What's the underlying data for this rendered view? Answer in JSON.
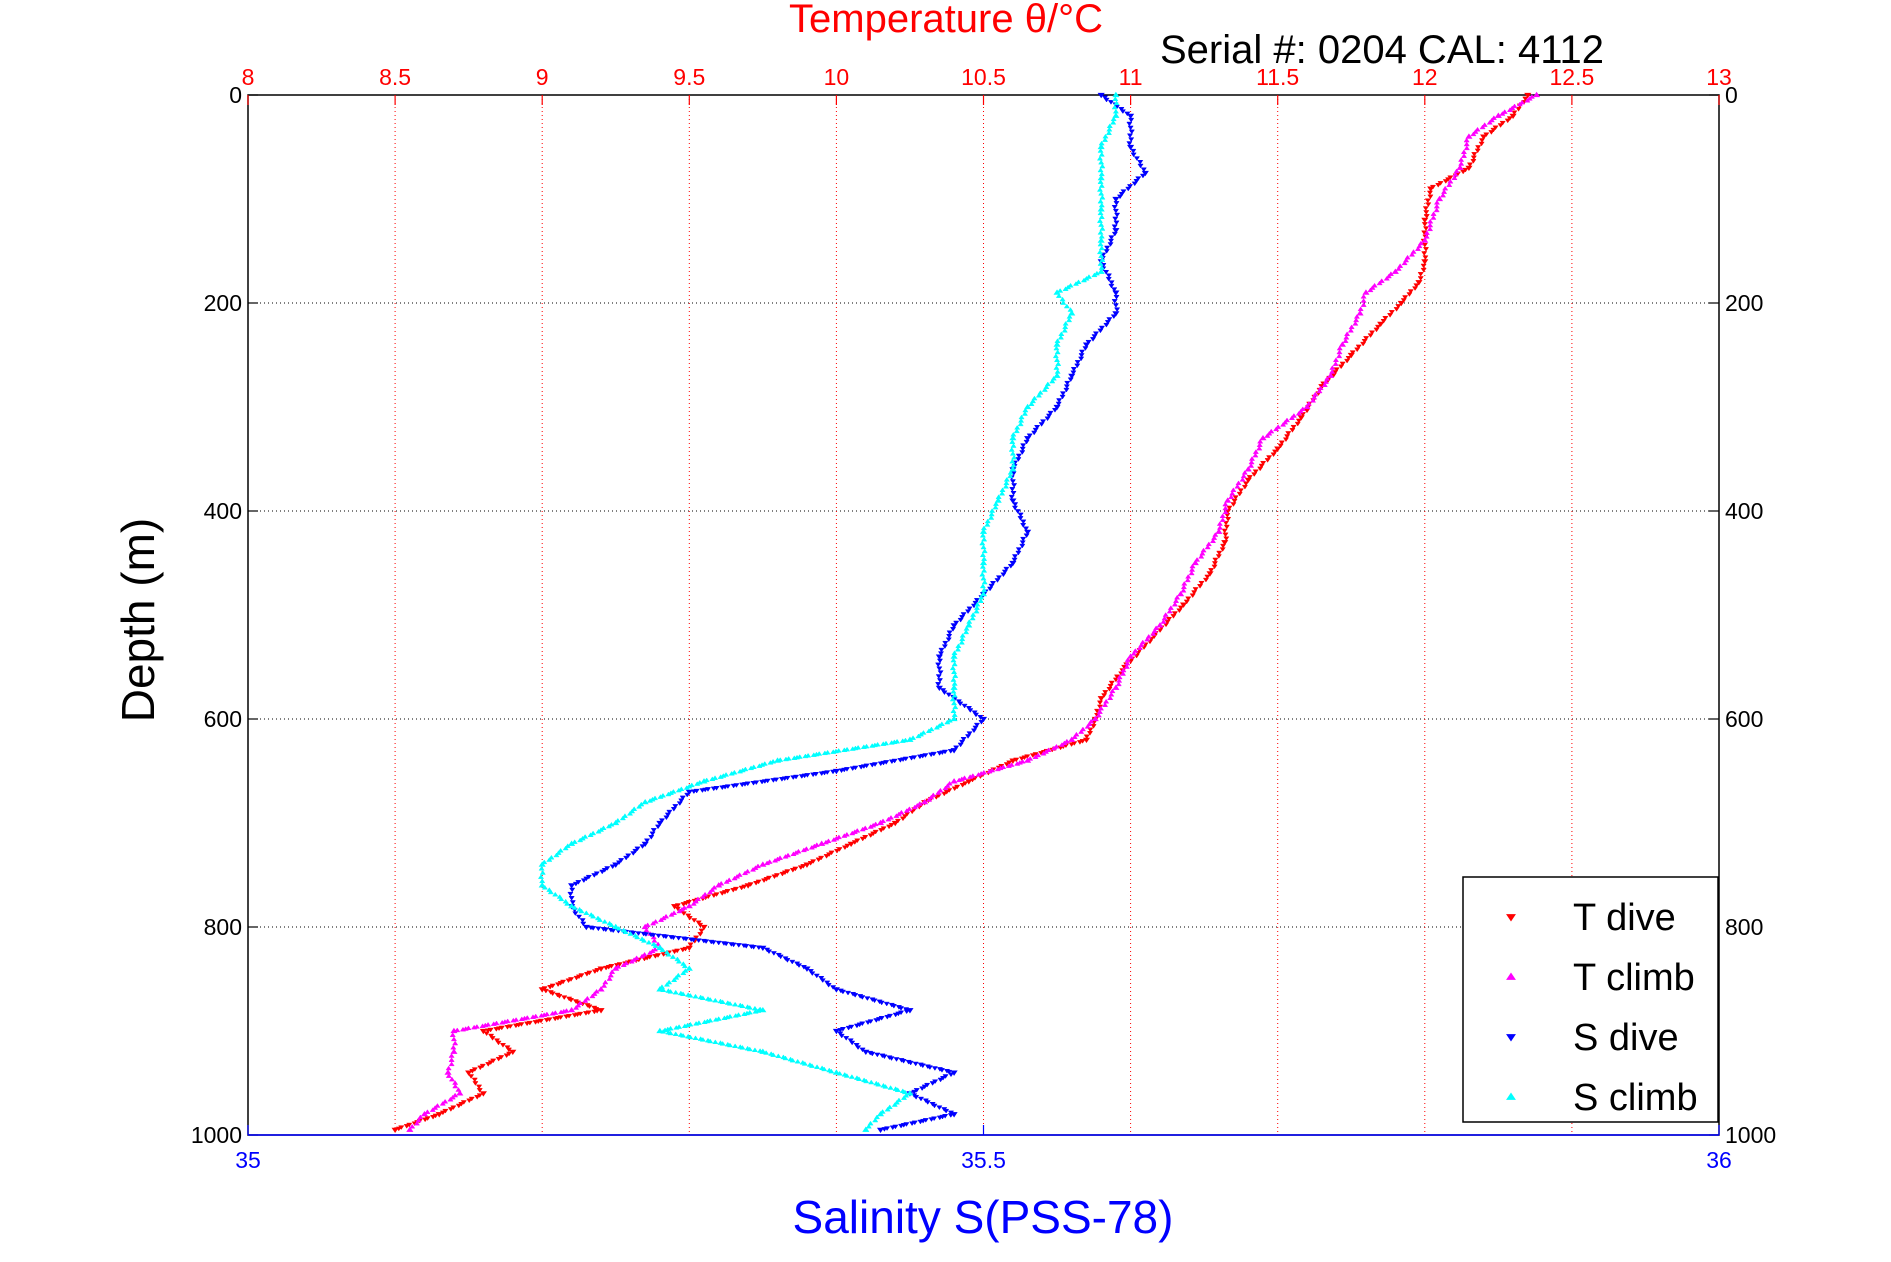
{
  "colors": {
    "t_dive": "#ff0000",
    "t_climb": "#ff00ff",
    "s_dive": "#0000ff",
    "s_climb": "#00ffff",
    "grid": "#000000",
    "top_grid": "#ff0000"
  },
  "chart_data": {
    "type": "scatter",
    "title": "Temperature θ/°C",
    "subtitle": "Serial #: 0204  CAL: 4112",
    "ylabel": "Depth (m)",
    "xlabel": "Salinity S(PSS-78)",
    "y_reversed": true,
    "ylim": [
      0,
      1000
    ],
    "yticks": [
      "0",
      "200",
      "400",
      "600",
      "800",
      "1000"
    ],
    "temperature_axis": {
      "position": "top",
      "lim": [
        8,
        13
      ],
      "ticks": [
        "8",
        "8.5",
        "9",
        "9.5",
        "10",
        "10.5",
        "11",
        "11.5",
        "12",
        "12.5",
        "13"
      ],
      "ticks_numeric": [
        8,
        8.5,
        9,
        9.5,
        10,
        10.5,
        11,
        11.5,
        12,
        12.5,
        13
      ]
    },
    "salinity_axis": {
      "position": "bottom",
      "lim": [
        35,
        36
      ],
      "ticks": [
        "35",
        "35.5",
        "36"
      ],
      "ticks_numeric": [
        35,
        35.5,
        36
      ]
    },
    "ytick_values": [
      0,
      200,
      400,
      600,
      800,
      1000
    ],
    "grid": true,
    "legend": {
      "placement": "bottom-right",
      "entries": [
        "T dive",
        "T climb",
        "S dive",
        "S climb"
      ]
    },
    "series": [
      {
        "name": "T dive",
        "axis": "temperature",
        "marker": "triangle-down",
        "points": [
          [
            0,
            12.35
          ],
          [
            20,
            12.3
          ],
          [
            40,
            12.2
          ],
          [
            70,
            12.15
          ],
          [
            90,
            12.02
          ],
          [
            120,
            12.0
          ],
          [
            160,
            12.0
          ],
          [
            180,
            11.98
          ],
          [
            200,
            11.92
          ],
          [
            220,
            11.85
          ],
          [
            250,
            11.75
          ],
          [
            280,
            11.65
          ],
          [
            310,
            11.58
          ],
          [
            340,
            11.5
          ],
          [
            370,
            11.4
          ],
          [
            400,
            11.33
          ],
          [
            430,
            11.32
          ],
          [
            460,
            11.27
          ],
          [
            490,
            11.18
          ],
          [
            520,
            11.08
          ],
          [
            550,
            10.98
          ],
          [
            580,
            10.9
          ],
          [
            600,
            10.88
          ],
          [
            620,
            10.85
          ],
          [
            640,
            10.6
          ],
          [
            660,
            10.45
          ],
          [
            680,
            10.3
          ],
          [
            700,
            10.2
          ],
          [
            720,
            10.05
          ],
          [
            740,
            9.9
          ],
          [
            760,
            9.7
          ],
          [
            780,
            9.45
          ],
          [
            800,
            9.55
          ],
          [
            820,
            9.5
          ],
          [
            840,
            9.2
          ],
          [
            860,
            9.0
          ],
          [
            880,
            9.2
          ],
          [
            900,
            8.8
          ],
          [
            920,
            8.9
          ],
          [
            940,
            8.75
          ],
          [
            960,
            8.8
          ],
          [
            980,
            8.65
          ],
          [
            995,
            8.5
          ]
        ]
      },
      {
        "name": "T climb",
        "axis": "temperature",
        "marker": "triangle-up",
        "points": [
          [
            0,
            12.38
          ],
          [
            20,
            12.25
          ],
          [
            40,
            12.15
          ],
          [
            70,
            12.12
          ],
          [
            100,
            12.05
          ],
          [
            140,
            12.0
          ],
          [
            170,
            11.9
          ],
          [
            190,
            11.8
          ],
          [
            210,
            11.78
          ],
          [
            240,
            11.72
          ],
          [
            270,
            11.68
          ],
          [
            300,
            11.6
          ],
          [
            330,
            11.45
          ],
          [
            360,
            11.4
          ],
          [
            390,
            11.33
          ],
          [
            420,
            11.3
          ],
          [
            450,
            11.22
          ],
          [
            480,
            11.17
          ],
          [
            510,
            11.1
          ],
          [
            540,
            11.0
          ],
          [
            570,
            10.95
          ],
          [
            600,
            10.88
          ],
          [
            620,
            10.8
          ],
          [
            640,
            10.65
          ],
          [
            660,
            10.4
          ],
          [
            680,
            10.3
          ],
          [
            700,
            10.15
          ],
          [
            720,
            9.95
          ],
          [
            740,
            9.75
          ],
          [
            760,
            9.6
          ],
          [
            780,
            9.5
          ],
          [
            800,
            9.35
          ],
          [
            820,
            9.4
          ],
          [
            840,
            9.25
          ],
          [
            860,
            9.2
          ],
          [
            880,
            9.1
          ],
          [
            900,
            8.7
          ],
          [
            920,
            8.7
          ],
          [
            940,
            8.68
          ],
          [
            960,
            8.72
          ],
          [
            980,
            8.6
          ],
          [
            995,
            8.55
          ]
        ]
      },
      {
        "name": "S dive",
        "axis": "salinity",
        "marker": "triangle-down",
        "points": [
          [
            0,
            35.58
          ],
          [
            20,
            35.6
          ],
          [
            50,
            35.6
          ],
          [
            75,
            35.61
          ],
          [
            100,
            35.59
          ],
          [
            130,
            35.59
          ],
          [
            160,
            35.58
          ],
          [
            190,
            35.59
          ],
          [
            210,
            35.59
          ],
          [
            240,
            35.57
          ],
          [
            270,
            35.56
          ],
          [
            300,
            35.55
          ],
          [
            330,
            35.53
          ],
          [
            360,
            35.52
          ],
          [
            390,
            35.52
          ],
          [
            420,
            35.53
          ],
          [
            450,
            35.52
          ],
          [
            480,
            35.5
          ],
          [
            510,
            35.48
          ],
          [
            540,
            35.47
          ],
          [
            570,
            35.47
          ],
          [
            600,
            35.5
          ],
          [
            630,
            35.48
          ],
          [
            650,
            35.4
          ],
          [
            670,
            35.3
          ],
          [
            700,
            35.28
          ],
          [
            720,
            35.27
          ],
          [
            740,
            35.25
          ],
          [
            760,
            35.22
          ],
          [
            780,
            35.22
          ],
          [
            800,
            35.23
          ],
          [
            820,
            35.35
          ],
          [
            840,
            35.38
          ],
          [
            860,
            35.4
          ],
          [
            880,
            35.45
          ],
          [
            900,
            35.4
          ],
          [
            920,
            35.42
          ],
          [
            940,
            35.48
          ],
          [
            960,
            35.45
          ],
          [
            980,
            35.48
          ],
          [
            995,
            35.43
          ]
        ]
      },
      {
        "name": "S climb",
        "axis": "salinity",
        "marker": "triangle-up",
        "points": [
          [
            0,
            35.59
          ],
          [
            20,
            35.59
          ],
          [
            50,
            35.58
          ],
          [
            80,
            35.58
          ],
          [
            110,
            35.58
          ],
          [
            140,
            35.58
          ],
          [
            170,
            35.58
          ],
          [
            190,
            35.55
          ],
          [
            210,
            35.56
          ],
          [
            240,
            35.55
          ],
          [
            270,
            35.55
          ],
          [
            300,
            35.53
          ],
          [
            330,
            35.52
          ],
          [
            360,
            35.52
          ],
          [
            390,
            35.51
          ],
          [
            420,
            35.5
          ],
          [
            450,
            35.5
          ],
          [
            480,
            35.5
          ],
          [
            510,
            35.49
          ],
          [
            540,
            35.48
          ],
          [
            570,
            35.48
          ],
          [
            600,
            35.48
          ],
          [
            620,
            35.45
          ],
          [
            640,
            35.36
          ],
          [
            660,
            35.31
          ],
          [
            680,
            35.27
          ],
          [
            700,
            35.25
          ],
          [
            720,
            35.22
          ],
          [
            740,
            35.2
          ],
          [
            760,
            35.2
          ],
          [
            780,
            35.22
          ],
          [
            800,
            35.25
          ],
          [
            820,
            35.28
          ],
          [
            840,
            35.3
          ],
          [
            860,
            35.28
          ],
          [
            880,
            35.35
          ],
          [
            900,
            35.28
          ],
          [
            920,
            35.35
          ],
          [
            940,
            35.4
          ],
          [
            960,
            35.45
          ],
          [
            980,
            35.43
          ],
          [
            995,
            35.42
          ]
        ]
      }
    ]
  }
}
